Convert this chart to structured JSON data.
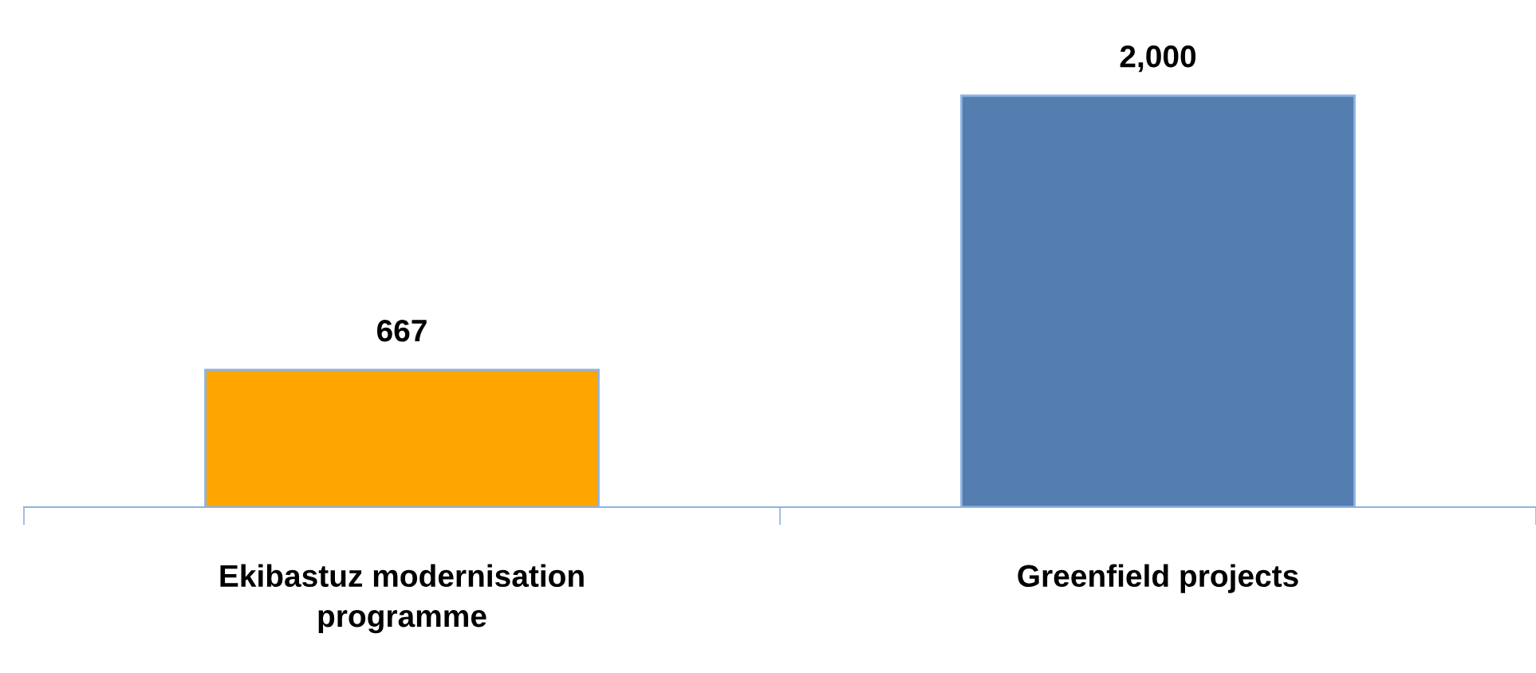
{
  "chart_data": {
    "type": "bar",
    "categories": [
      "Ekibastuz modernisation programme",
      "Greenfield projects"
    ],
    "values": [
      667,
      2000
    ],
    "colors": [
      "#ffa500",
      "#557eb0"
    ],
    "data_labels": true,
    "value_labels": [
      "667",
      "2,000"
    ],
    "grid": false
  }
}
